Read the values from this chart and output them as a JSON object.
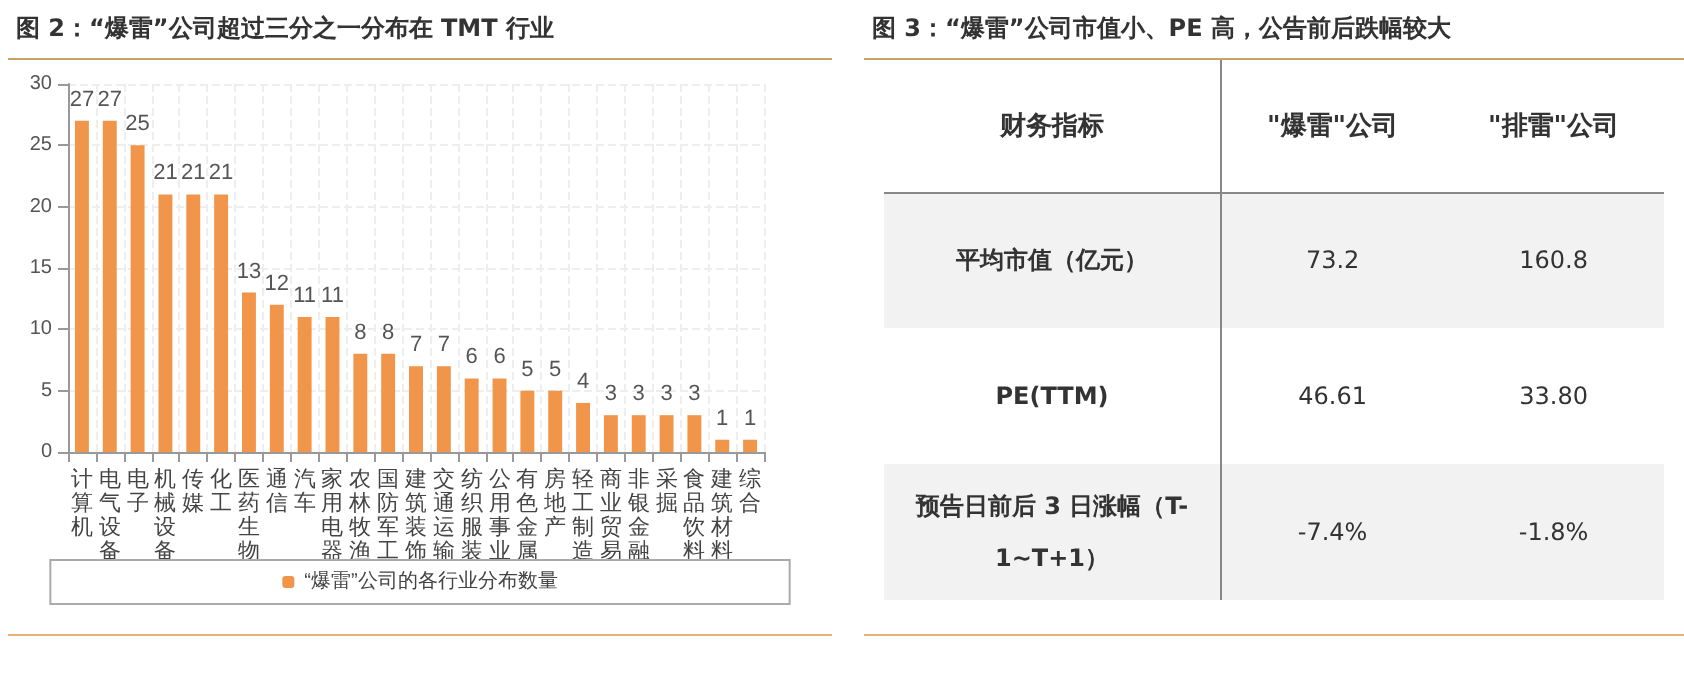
{
  "chart_data": [
    {
      "type": "bar",
      "title": "图 2：“爆雷”公司超过三分之一分布在 TMT 行业",
      "categories": [
        "计算机",
        "电气设备",
        "电子",
        "机械设备",
        "传媒",
        "化工",
        "医药生物",
        "通信",
        "汽车",
        "家用电器",
        "农林牧渔",
        "国防军工",
        "建筑装饰",
        "交通运输",
        "纺织服装",
        "公用事业",
        "有色金属",
        "房地产",
        "轻工制造",
        "商业贸易",
        "非银金融",
        "采掘",
        "食品饮料",
        "建筑材料",
        "综合"
      ],
      "series": [
        {
          "name": "“爆雷”公司的各行业分布数量",
          "color": "#f0954a",
          "values": [
            27,
            27,
            25,
            21,
            21,
            21,
            13,
            12,
            11,
            11,
            8,
            8,
            7,
            7,
            6,
            6,
            5,
            5,
            4,
            3,
            3,
            3,
            3,
            1,
            1
          ]
        }
      ],
      "ylim": [
        0,
        30
      ],
      "yticks": [
        0,
        5,
        10,
        15,
        20,
        25,
        30
      ],
      "grid": true,
      "legend": "bottom",
      "data_labels": true
    },
    {
      "type": "other",
      "title": "图 3：“爆雷”公司市值小、PE 高，公告前后跌幅较大",
      "ylabel": "财务指标",
      "categories": [
        "\"爆雷\"公司",
        "\"排雷\"公司"
      ],
      "y_categories": [
        "平均市值（亿元）",
        "PE(TTM)",
        "预告日前后 3 日涨幅（T-1~T+1）"
      ],
      "cell_labels": [
        [
          "73.2",
          "160.8"
        ],
        [
          "46.61",
          "33.80"
        ],
        [
          "-7.4%",
          "-1.8%"
        ]
      ]
    }
  ]
}
